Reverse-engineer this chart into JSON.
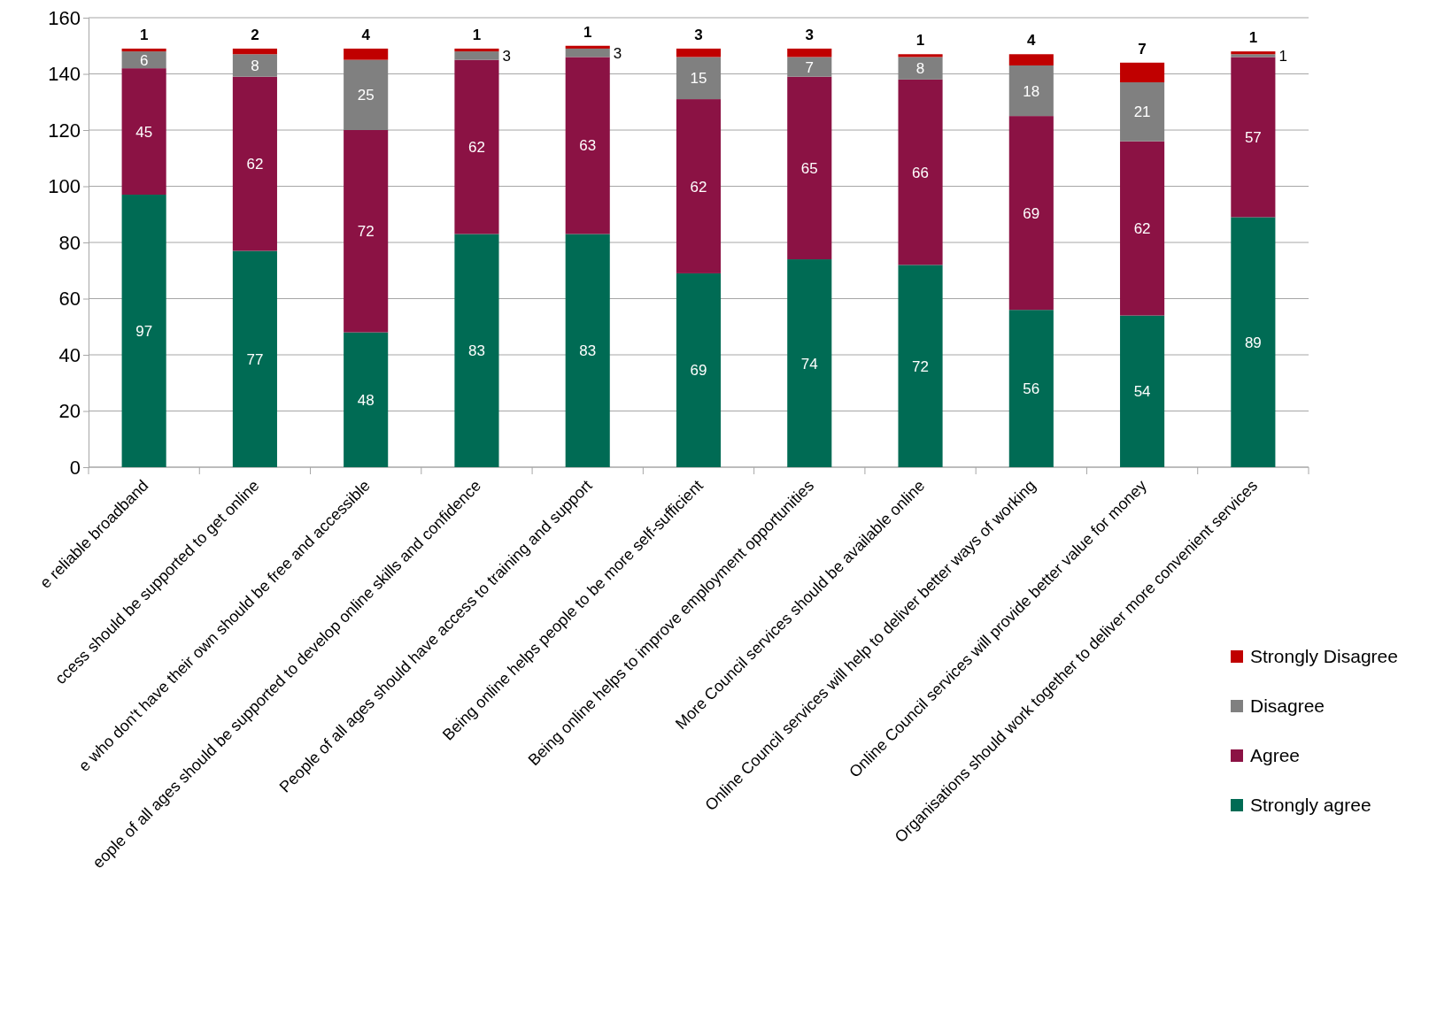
{
  "chart_data": {
    "type": "bar",
    "stacked": true,
    "categories": [
      "e reliable broadband",
      "ccess should be supported to get online",
      "e who don't have their own should be free and accessible",
      "eople of all ages should be supported to develop online skills and confidence",
      "People of all ages should have access to training and support",
      "Being online helps people to be more self-sufficient",
      "Being online helps to improve employment opportunities",
      "More Council services should be available online",
      "Online Council services will help to deliver better ways of working",
      "Online Council services will provide better value for money",
      "Organisations should work together to deliver more convenient services"
    ],
    "series": [
      {
        "name": "Strongly agree",
        "color": "#006b54",
        "values": [
          97,
          77,
          48,
          83,
          83,
          69,
          74,
          72,
          56,
          54,
          89
        ]
      },
      {
        "name": "Agree",
        "color": "#8b1244",
        "values": [
          45,
          62,
          72,
          62,
          63,
          62,
          65,
          66,
          69,
          62,
          57
        ]
      },
      {
        "name": "Disagree",
        "color": "#808080",
        "values": [
          6,
          8,
          25,
          3,
          3,
          15,
          7,
          8,
          18,
          21,
          1
        ]
      },
      {
        "name": "Strongly Disagree",
        "color": "#c00000",
        "values": [
          1,
          2,
          4,
          1,
          1,
          3,
          3,
          1,
          4,
          7,
          1
        ]
      }
    ],
    "ylim": [
      0,
      160
    ],
    "yticks": [
      0,
      20,
      40,
      60,
      80,
      100,
      120,
      140,
      160
    ],
    "grid": "y",
    "legend": "right",
    "data_labels": true
  }
}
